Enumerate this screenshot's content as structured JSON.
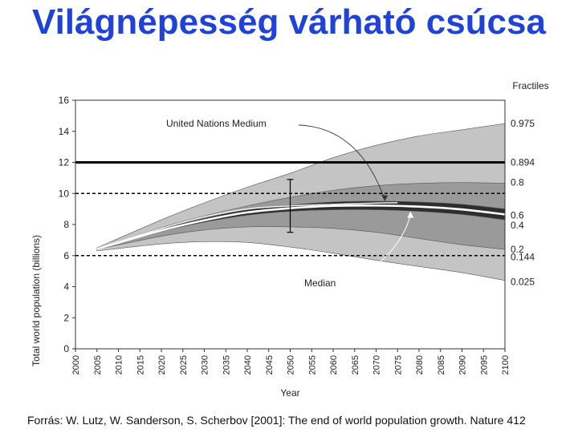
{
  "slide": {
    "title": "Világnépesség várható csúcsa",
    "source": "Forrás: W. Lutz, W. Sanderson, S. Scherbov [2001]: The end of world population growth. Nature 412"
  },
  "chart_data": {
    "type": "area",
    "xlabel": "Year",
    "ylabel": "Total world population (billions)",
    "xlim": [
      2000,
      2100
    ],
    "ylim": [
      0,
      16
    ],
    "yticks": [
      0,
      2,
      4,
      6,
      8,
      10,
      12,
      14,
      16
    ],
    "xticks": [
      2000,
      2005,
      2010,
      2015,
      2020,
      2025,
      2030,
      2035,
      2040,
      2045,
      2050,
      2055,
      2060,
      2065,
      2070,
      2075,
      2080,
      2085,
      2090,
      2095,
      2100
    ],
    "legend_title": "Fractiles",
    "x": [
      2005,
      2020,
      2030,
      2040,
      2050,
      2060,
      2070,
      2080,
      2090,
      2100
    ],
    "bands": [
      {
        "lower": "0.025",
        "upper": "0.975",
        "color": "#c4c4c4",
        "low": [
          6.3,
          6.75,
          6.9,
          6.85,
          6.55,
          6.15,
          5.7,
          5.3,
          4.9,
          4.4
        ],
        "high": [
          6.5,
          8.3,
          9.4,
          10.4,
          11.3,
          12.3,
          13.1,
          13.7,
          14.1,
          14.5
        ]
      },
      {
        "lower": "0.2",
        "upper": "0.8",
        "color": "#9a9a9a",
        "low": [
          6.4,
          7.25,
          7.65,
          7.85,
          7.85,
          7.75,
          7.5,
          7.1,
          6.7,
          6.4
        ],
        "high": [
          6.45,
          7.8,
          8.55,
          9.2,
          9.75,
          10.2,
          10.5,
          10.65,
          10.7,
          10.65
        ]
      },
      {
        "lower": "0.4",
        "upper": "0.6",
        "color": "#2e2e2e",
        "low": [
          6.42,
          7.55,
          8.15,
          8.6,
          8.85,
          8.95,
          8.95,
          8.85,
          8.65,
          8.3
        ],
        "high": [
          6.44,
          7.7,
          8.4,
          8.95,
          9.25,
          9.45,
          9.5,
          9.45,
          9.3,
          9.0
        ]
      }
    ],
    "median": [
      6.43,
      7.62,
      8.27,
      8.78,
      9.05,
      9.2,
      9.22,
      9.15,
      8.97,
      8.65
    ],
    "un_medium": {
      "x": [
        2005,
        2020,
        2030,
        2040,
        2050,
        2060,
        2070,
        2075
      ],
      "y": [
        6.45,
        7.75,
        8.5,
        9.0,
        9.2,
        9.3,
        9.38,
        9.4
      ]
    },
    "reference_lines": [
      {
        "y": 12,
        "style": "solid"
      },
      {
        "y": 10,
        "style": "dashed"
      },
      {
        "y": 6,
        "style": "dashed"
      }
    ],
    "error_bar": {
      "x": 2050,
      "low": 7.5,
      "high": 10.9
    },
    "fractile_labels": [
      {
        "label": "0.975",
        "y": 14.5
      },
      {
        "label": "0.894",
        "y": 12.0
      },
      {
        "label": "0.8",
        "y": 10.7
      },
      {
        "label": "0.6",
        "y": 8.6
      },
      {
        "label": "0.4",
        "y": 7.95
      },
      {
        "label": "0.2",
        "y": 6.4
      },
      {
        "label": "0.144",
        "y": 5.9
      },
      {
        "label": "0.025",
        "y": 4.3
      }
    ],
    "annotations": [
      {
        "text": "United Nations Medium",
        "target_x": 2072,
        "target_y": 9.4
      },
      {
        "text": "Median",
        "target_x": 2078,
        "target_y": 9.0
      }
    ],
    "grid": false,
    "legend_position": "right"
  }
}
